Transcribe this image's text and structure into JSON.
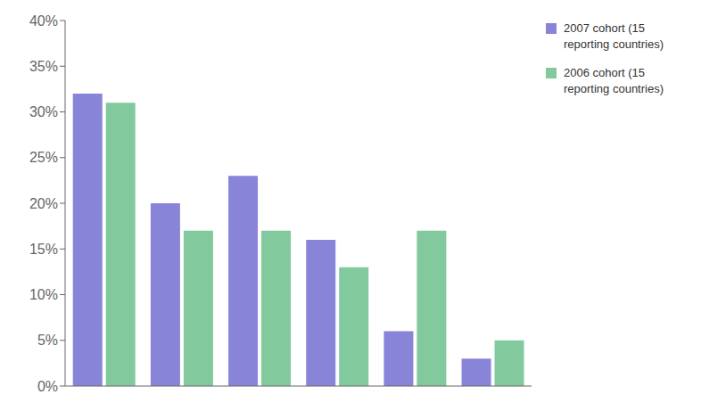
{
  "chart_data": {
    "type": "bar",
    "categories": [
      null,
      null,
      null,
      null,
      null,
      null
    ],
    "series": [
      {
        "name": "2007 cohort (15\nreporting countries)",
        "color": "#8884d8",
        "values": [
          32,
          20,
          23,
          16,
          6,
          3
        ]
      },
      {
        "name": "2006 cohort (15\nreporting countries)",
        "color": "#82ca9d",
        "values": [
          31,
          17,
          17,
          13,
          17,
          5
        ]
      }
    ],
    "ylim": [
      0,
      40
    ],
    "yticks": [
      {
        "value": 0,
        "label": "0%"
      },
      {
        "value": 5,
        "label": "5%"
      },
      {
        "value": 10,
        "label": "10%"
      },
      {
        "value": 15,
        "label": "15%"
      },
      {
        "value": 20,
        "label": "20%"
      },
      {
        "value": 25,
        "label": "25%"
      },
      {
        "value": 30,
        "label": "30%"
      },
      {
        "value": 35,
        "label": "35%"
      },
      {
        "value": 40,
        "label": "40%"
      }
    ],
    "grid": false,
    "legend": "upper right",
    "tick_labels": "y"
  }
}
